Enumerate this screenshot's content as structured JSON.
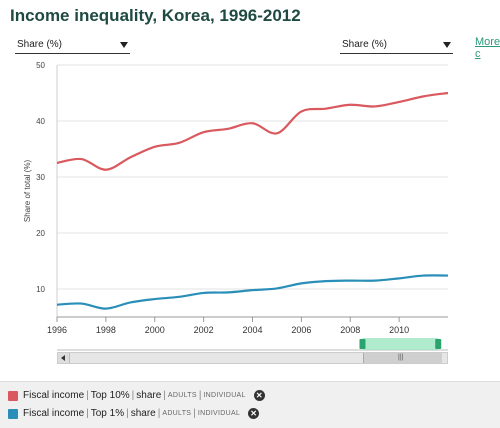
{
  "header": {
    "title": "Income inequality, Korea, 1996-2012",
    "more_label": "More c"
  },
  "controls": {
    "left_dropdown": "Share (%)",
    "right_dropdown": "Share (%)"
  },
  "legend": {
    "items": [
      {
        "main": "Fiscal income",
        "p1": "Top 10%",
        "p2": "share",
        "tag1": "ADULTS",
        "tag2": "INDIVIDUAL",
        "color": "#d9595e"
      },
      {
        "main": "Fiscal income",
        "p1": "Top 1%",
        "p2": "share",
        "tag1": "ADULTS",
        "tag2": "INDIVIDUAL",
        "color": "#2a8fb8"
      }
    ]
  },
  "chart_data": {
    "type": "line",
    "ylabel": "Share of total (%)",
    "xlim": [
      1996,
      2012
    ],
    "ylim": [
      5,
      50
    ],
    "x_ticks": [
      "1996",
      "1998",
      "2000",
      "2002",
      "2004",
      "2006",
      "2008",
      "2010"
    ],
    "y_ticks": [
      "10",
      "20",
      "30",
      "40",
      "50"
    ],
    "navigator_range": [
      2008.5,
      2011.6
    ],
    "series": [
      {
        "color": "#d9595e",
        "x": [
          1996,
          1997,
          1998,
          1999,
          2000,
          2001,
          2002,
          2003,
          2004,
          2005,
          2006,
          2007,
          2008,
          2009,
          2010,
          2011,
          2012
        ],
        "y": [
          32.5,
          33.2,
          31.3,
          33.5,
          35.4,
          36.1,
          38.0,
          38.6,
          39.6,
          37.8,
          41.7,
          42.2,
          42.9,
          42.6,
          43.4,
          44.4,
          45.0
        ]
      },
      {
        "color": "#2a8fb8",
        "x": [
          1996,
          1997,
          1998,
          1999,
          2000,
          2001,
          2002,
          2003,
          2004,
          2005,
          2006,
          2007,
          2008,
          2009,
          2010,
          2011,
          2012
        ],
        "y": [
          7.2,
          7.4,
          6.5,
          7.6,
          8.2,
          8.6,
          9.3,
          9.4,
          9.8,
          10.1,
          11.0,
          11.4,
          11.5,
          11.5,
          11.9,
          12.4,
          12.4
        ]
      }
    ]
  }
}
